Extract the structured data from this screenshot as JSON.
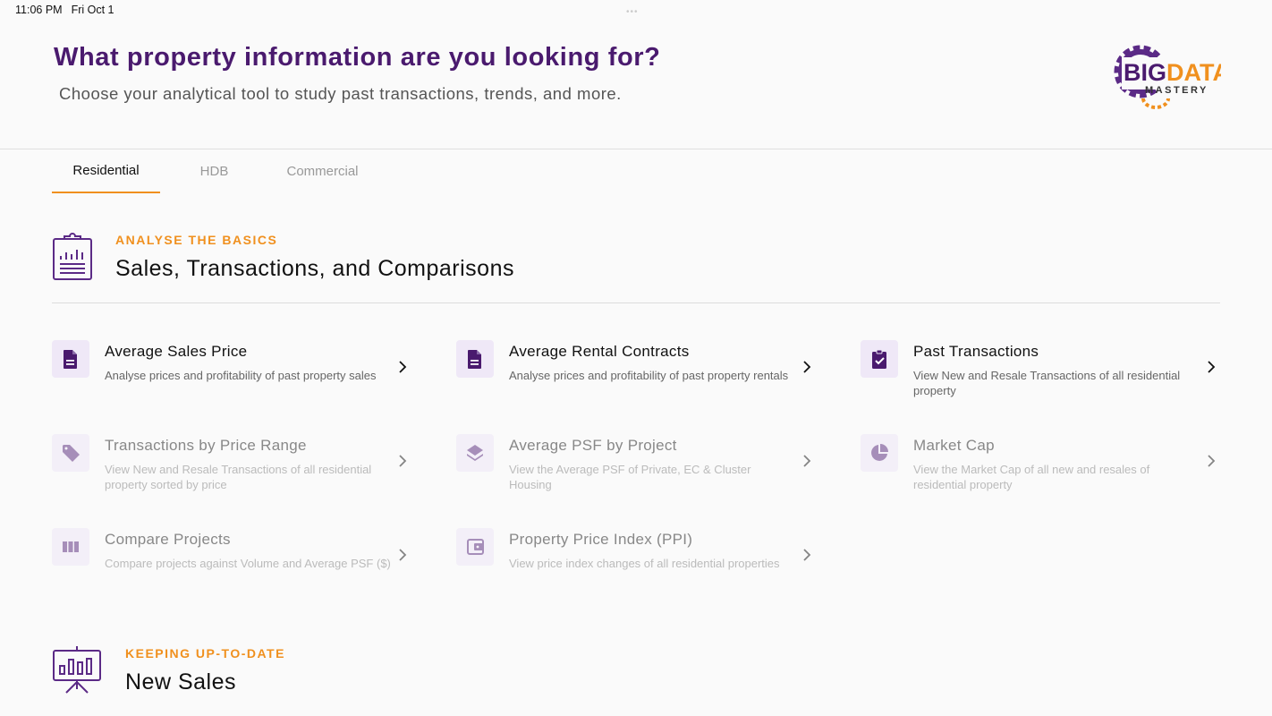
{
  "status_bar": {
    "time": "11:06 PM",
    "date": "Fri Oct 1"
  },
  "header": {
    "title": "What property information are you looking for?",
    "subtitle": "Choose your analytical tool to study past transactions, trends, and more.",
    "logo_text": "BIG DATA MASTERY"
  },
  "tabs": [
    {
      "label": "Residential",
      "active": true
    },
    {
      "label": "HDB"
    },
    {
      "label": "Commercial"
    }
  ],
  "colors": {
    "primary": "#4a1a6e",
    "accent": "#f0901e"
  },
  "sections": [
    {
      "kicker": "ANALYSE THE BASICS",
      "title": "Sales, Transactions, and Comparisons",
      "icon": "clipboard-chart-icon",
      "items": [
        {
          "title": "Average Sales Price",
          "desc": "Analyse prices and profitability of past property sales",
          "icon": "document-icon",
          "enabled": true
        },
        {
          "title": "Average Rental Contracts",
          "desc": "Analyse prices and profitability of past property rentals",
          "icon": "document-icon",
          "enabled": true
        },
        {
          "title": "Past Transactions",
          "desc": "View New and Resale Transactions of all residential property",
          "icon": "clipboard-check-icon",
          "enabled": true
        },
        {
          "title": "Transactions by Price Range",
          "desc": "View New and Resale Transactions of all residential property sorted by price",
          "icon": "tag-icon",
          "enabled": false
        },
        {
          "title": "Average PSF by Project",
          "desc": "View the Average PSF of Private, EC & Cluster Housing",
          "icon": "layers-icon",
          "enabled": false
        },
        {
          "title": "Market Cap",
          "desc": "View the Market Cap of all new and resales of residential property",
          "icon": "pie-chart-icon",
          "enabled": false
        },
        {
          "title": "Compare Projects",
          "desc": "Compare projects against Volume and Average PSF ($)",
          "icon": "columns-icon",
          "enabled": false
        },
        {
          "title": "Property Price Index (PPI)",
          "desc": "View price index changes of all residential properties",
          "icon": "wallet-icon",
          "enabled": false
        }
      ]
    },
    {
      "kicker": "KEEPING UP-TO-DATE",
      "title": "New Sales",
      "icon": "presentation-chart-icon"
    }
  ]
}
